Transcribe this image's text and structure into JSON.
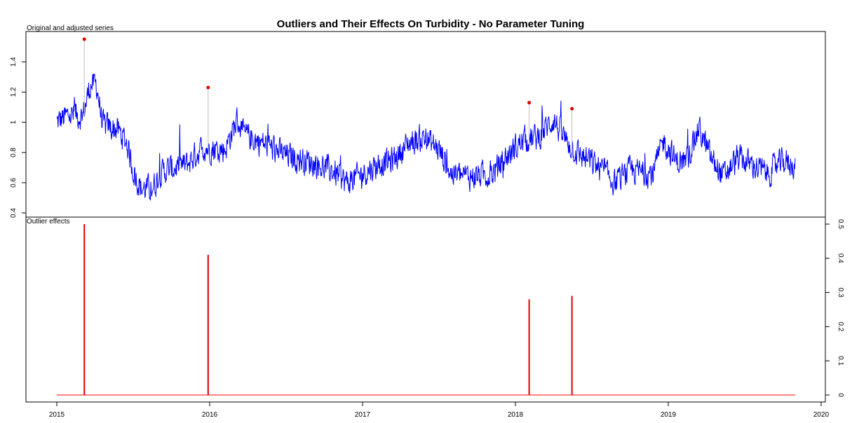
{
  "title": "Outliers and Their Effects On Turbidity - No Parameter Tuning",
  "colors": {
    "series": "#0000ff",
    "outlier_point": "#e00000",
    "connector": "#bdbdbd",
    "effects": "#ff0000",
    "effect_spike": "#e00000"
  },
  "chart_data": [
    {
      "type": "line",
      "panel_label": "Original and adjusted series",
      "xlim": [
        2015,
        2020
      ],
      "ylim": [
        0.4,
        1.55
      ],
      "yticks": [
        0.4,
        0.6,
        0.8,
        1,
        1.2,
        1.4
      ],
      "ytick_labels": [
        "0.4",
        "0.6",
        "0.8",
        "1",
        "1.2",
        "1.4"
      ],
      "series": [
        {
          "x_range": [
            2015.0,
            2019.83
          ],
          "anchors": [
            [
              2015.0,
              1.0
            ],
            [
              2015.08,
              1.05
            ],
            [
              2015.17,
              1.04
            ],
            [
              2015.22,
              1.25
            ],
            [
              2015.26,
              1.25
            ],
            [
              2015.3,
              0.98
            ],
            [
              2015.4,
              0.95
            ],
            [
              2015.46,
              0.86
            ],
            [
              2015.5,
              0.68
            ],
            [
              2015.55,
              0.56
            ],
            [
              2015.62,
              0.56
            ],
            [
              2015.7,
              0.68
            ],
            [
              2015.85,
              0.72
            ],
            [
              2015.95,
              0.83
            ],
            [
              2016.1,
              0.82
            ],
            [
              2016.18,
              1.02
            ],
            [
              2016.22,
              0.92
            ],
            [
              2016.35,
              0.86
            ],
            [
              2016.5,
              0.78
            ],
            [
              2016.65,
              0.74
            ],
            [
              2016.8,
              0.68
            ],
            [
              2016.9,
              0.6
            ],
            [
              2017.0,
              0.66
            ],
            [
              2017.1,
              0.72
            ],
            [
              2017.2,
              0.75
            ],
            [
              2017.3,
              0.86
            ],
            [
              2017.4,
              0.9
            ],
            [
              2017.5,
              0.82
            ],
            [
              2017.58,
              0.66
            ],
            [
              2017.7,
              0.64
            ],
            [
              2017.85,
              0.66
            ],
            [
              2017.95,
              0.78
            ],
            [
              2018.05,
              0.88
            ],
            [
              2018.15,
              0.9
            ],
            [
              2018.25,
              1.02
            ],
            [
              2018.3,
              0.92
            ],
            [
              2018.4,
              0.8
            ],
            [
              2018.55,
              0.7
            ],
            [
              2018.65,
              0.6
            ],
            [
              2018.75,
              0.68
            ],
            [
              2018.9,
              0.66
            ],
            [
              2018.97,
              0.88
            ],
            [
              2019.05,
              0.74
            ],
            [
              2019.12,
              0.74
            ],
            [
              2019.2,
              0.96
            ],
            [
              2019.28,
              0.76
            ],
            [
              2019.36,
              0.64
            ],
            [
              2019.45,
              0.76
            ],
            [
              2019.55,
              0.72
            ],
            [
              2019.65,
              0.66
            ],
            [
              2019.75,
              0.74
            ],
            [
              2019.83,
              0.72
            ]
          ]
        }
      ],
      "outliers": [
        {
          "x": 2015.18,
          "original": 1.55,
          "adjusted": 1.04
        },
        {
          "x": 2015.99,
          "original": 1.23,
          "adjusted": 0.83
        },
        {
          "x": 2018.09,
          "original": 1.13,
          "adjusted": 0.86
        },
        {
          "x": 2018.37,
          "original": 1.09,
          "adjusted": 0.8
        }
      ],
      "grid": false,
      "legend": "none"
    },
    {
      "type": "bar",
      "panel_label": "Outlier effects",
      "xlim": [
        2015,
        2020
      ],
      "ylim": [
        0,
        0.5
      ],
      "yticks": [
        0,
        0.1,
        0.2,
        0.3,
        0.4,
        0.5
      ],
      "ytick_labels": [
        "0",
        "0.1",
        "0.2",
        "0.3",
        "0.4",
        "0.5"
      ],
      "xticks": [
        2015,
        2016,
        2017,
        2018,
        2019,
        2020
      ],
      "xtick_labels": [
        "2015",
        "2016",
        "2017",
        "2018",
        "2019",
        "2020"
      ],
      "baseline": {
        "x_range": [
          2015.0,
          2019.83
        ],
        "value": 0
      },
      "effects": [
        {
          "x": 2015.18,
          "value": 0.5
        },
        {
          "x": 2015.99,
          "value": 0.41
        },
        {
          "x": 2018.09,
          "value": 0.28
        },
        {
          "x": 2018.37,
          "value": 0.29
        }
      ],
      "grid": false,
      "legend": "none"
    }
  ]
}
